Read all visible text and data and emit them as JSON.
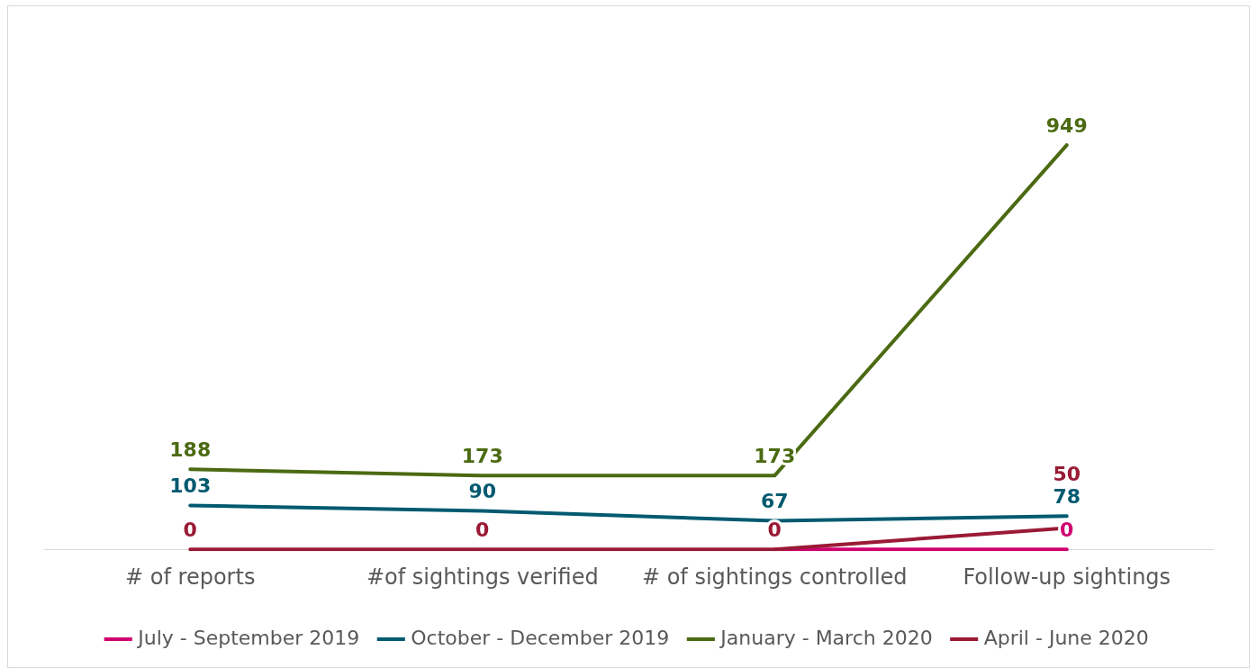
{
  "chart_data": {
    "type": "line",
    "categories": [
      "# of reports",
      "#of sightings verified",
      "# of sightings controlled",
      "Follow-up sightings"
    ],
    "series": [
      {
        "name": "July - September 2019",
        "color": "#d0006f",
        "values": [
          null,
          null,
          0,
          0
        ],
        "value_labels": [
          null,
          null,
          null,
          "0"
        ]
      },
      {
        "name": "October - December 2019",
        "color": "#005a70",
        "values": [
          103,
          90,
          67,
          78
        ],
        "value_labels": [
          "103",
          "90",
          "67",
          "78"
        ]
      },
      {
        "name": "January - March 2020",
        "color": "#4b6a12",
        "values": [
          188,
          173,
          173,
          949
        ],
        "value_labels": [
          "188",
          "173",
          "173",
          "949"
        ]
      },
      {
        "name": "April - June 2020",
        "color": "#9a1a35",
        "values": [
          0,
          0,
          0,
          50
        ],
        "value_labels": [
          "0",
          "0",
          "0",
          "50"
        ]
      }
    ],
    "legend": "bottom",
    "grid": false,
    "line_style": "solid"
  }
}
